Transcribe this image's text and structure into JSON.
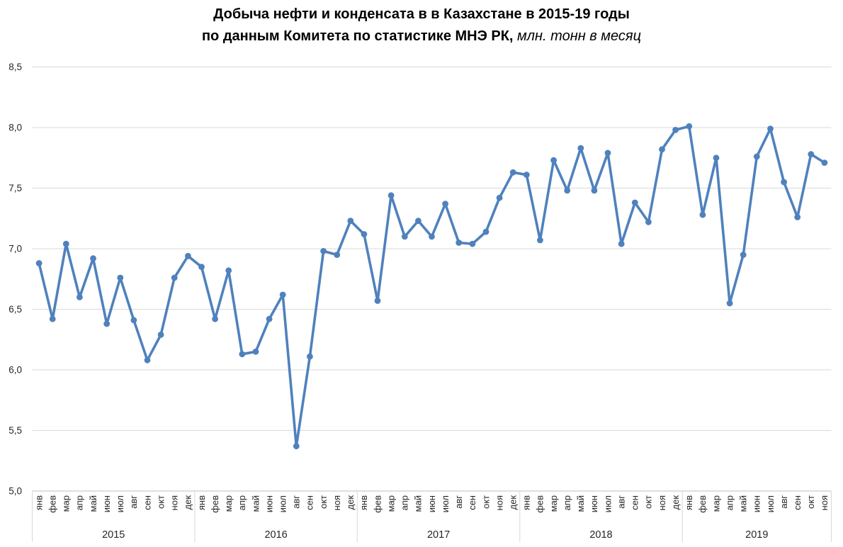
{
  "title": {
    "line1": "Добыча нефти и конденсата в в Казахстане в 2015-19 годы",
    "line2_bold": "по данным Комитета по статистике МНЭ РК,",
    "line2_italic": " млн. тонн в месяц"
  },
  "chart_data": {
    "type": "line",
    "title": "Добыча нефти и конденсата в в Казахстане в 2015-19 годы по данным Комитета по статистике МНЭ РК, млн. тонн в месяц",
    "categories": [
      "янв",
      "фев",
      "мар",
      "апр",
      "май",
      "июн",
      "июл",
      "авг",
      "сен",
      "окт",
      "ноя",
      "дек",
      "янв",
      "фев",
      "мар",
      "апр",
      "май",
      "июн",
      "июл",
      "авг",
      "сен",
      "окт",
      "ноя",
      "дек",
      "янв",
      "фев",
      "мар",
      "апр",
      "май",
      "июн",
      "июл",
      "авг",
      "сен",
      "окт",
      "ноя",
      "дек",
      "янв",
      "фев",
      "мар",
      "апр",
      "май",
      "июн",
      "июл",
      "авг",
      "сен",
      "окт",
      "ноя",
      "дек",
      "янв",
      "фев",
      "мар",
      "апр",
      "май",
      "июн",
      "июл",
      "авг",
      "сен",
      "окт",
      "ноя"
    ],
    "year_groups": [
      {
        "label": "2015",
        "count": 12
      },
      {
        "label": "2016",
        "count": 12
      },
      {
        "label": "2017",
        "count": 12
      },
      {
        "label": "2018",
        "count": 12
      },
      {
        "label": "2019",
        "count": 11
      }
    ],
    "series": [
      {
        "name": "Добыча нефти и конденсата, млн. тонн в месяц",
        "values": [
          6.88,
          6.42,
          7.04,
          6.6,
          6.92,
          6.38,
          6.76,
          6.41,
          6.08,
          6.29,
          6.76,
          6.94,
          6.85,
          6.42,
          6.82,
          6.13,
          6.15,
          6.42,
          6.62,
          5.37,
          6.11,
          6.98,
          6.95,
          7.23,
          7.12,
          6.57,
          7.44,
          7.1,
          7.23,
          7.1,
          7.37,
          7.05,
          7.04,
          7.14,
          7.42,
          7.63,
          7.61,
          7.07,
          7.73,
          7.48,
          7.83,
          7.48,
          7.79,
          7.04,
          7.38,
          7.22,
          7.82,
          7.98,
          8.01,
          7.28,
          7.75,
          6.55,
          6.95,
          7.76,
          7.99,
          7.55,
          7.26,
          7.78,
          7.71
        ]
      }
    ],
    "ylim": [
      5.0,
      8.5
    ],
    "ytick_step": 0.5,
    "ytick_labels": [
      "8,5",
      "8,0",
      "7,5",
      "7,0",
      "6,5",
      "6,0",
      "5,5",
      "5,0"
    ],
    "grid": true,
    "legend": "none",
    "marker": "circle",
    "colors": {
      "line": "#4F81BD",
      "marker": "#4F81BD",
      "gridline": "#D9D9D9",
      "axis_line": "#BFBFBF",
      "tick_text": "#262626",
      "title_text": "#000000"
    }
  }
}
